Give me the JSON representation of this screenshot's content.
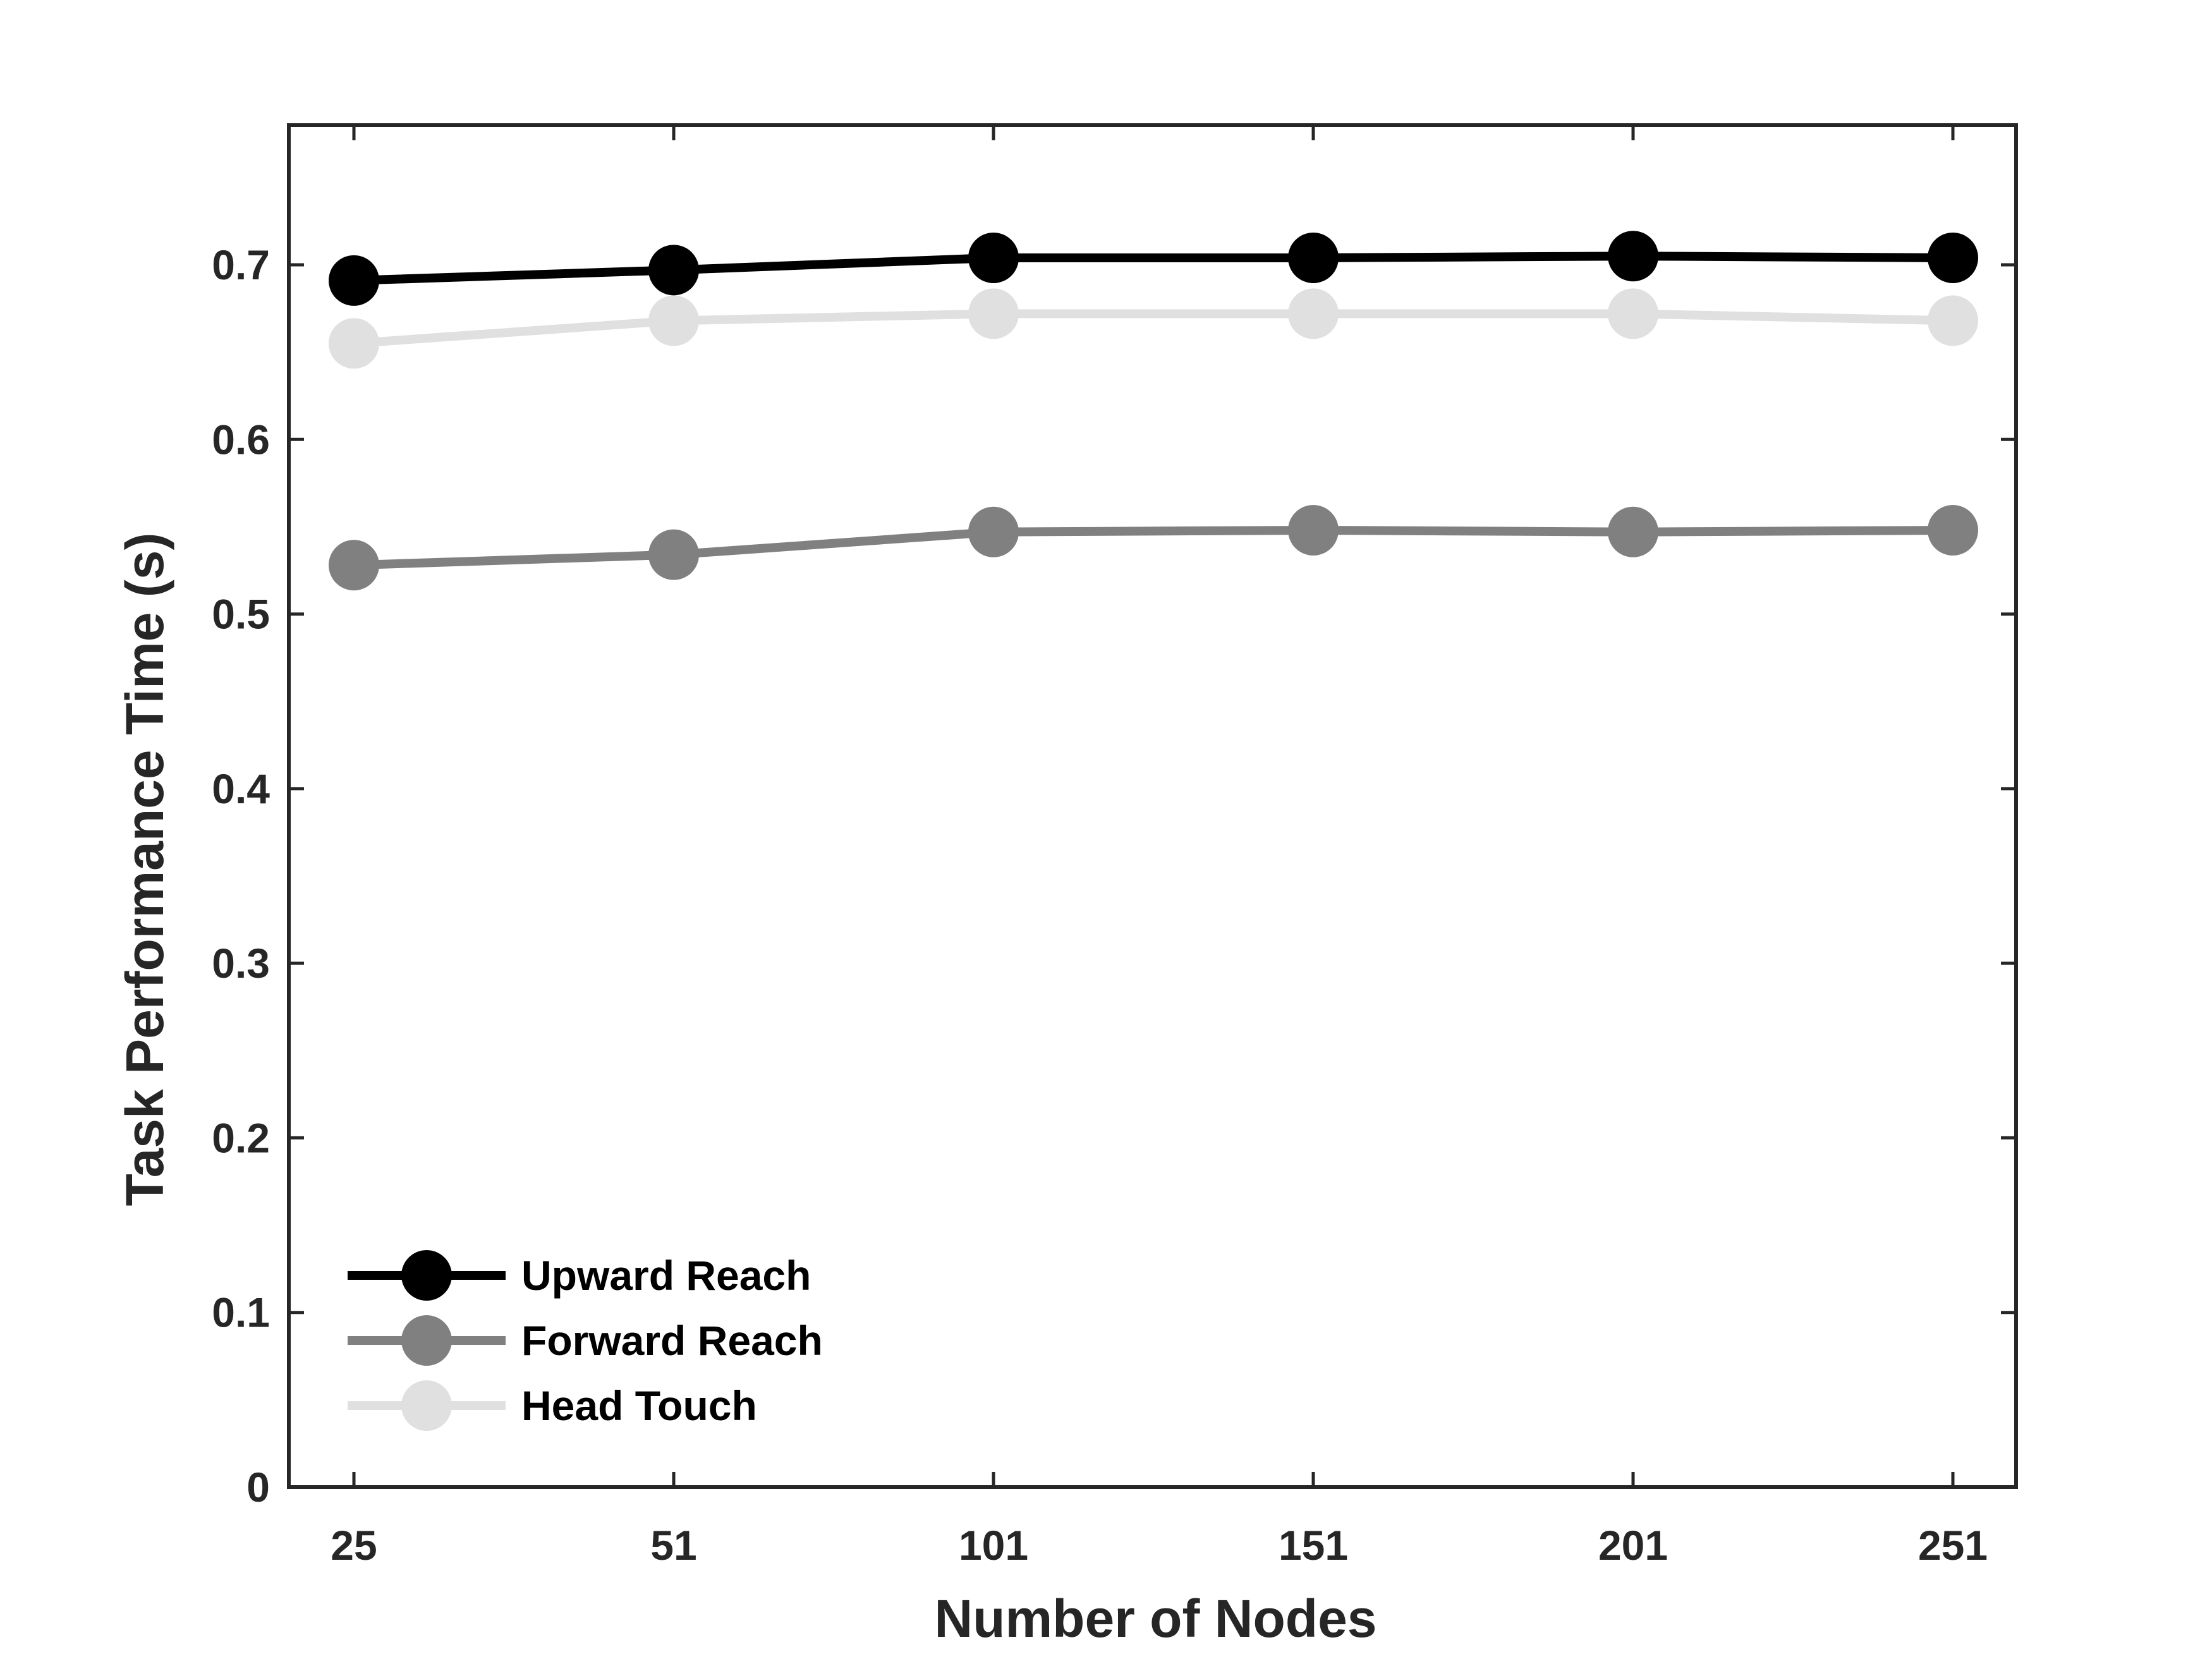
{
  "chart_data": {
    "type": "line",
    "xlabel": "Number of Nodes",
    "ylabel": "Task Performance Time (s)",
    "categories": [
      "25",
      "51",
      "101",
      "151",
      "201",
      "251"
    ],
    "yticks": [
      "0",
      "0.1",
      "0.2",
      "0.3",
      "0.4",
      "0.5",
      "0.6",
      "0.7"
    ],
    "ylim": [
      0,
      0.78
    ],
    "grid": false,
    "legend_position": "bottom-left",
    "series": [
      {
        "name": "Upward Reach",
        "color": "#000000",
        "values": [
          0.691,
          0.697,
          0.704,
          0.704,
          0.705,
          0.704
        ]
      },
      {
        "name": "Forward Reach",
        "color": "#808080",
        "values": [
          0.528,
          0.534,
          0.547,
          0.548,
          0.547,
          0.548
        ]
      },
      {
        "name": "Head Touch",
        "color": "#e0e0e0",
        "values": [
          0.655,
          0.668,
          0.672,
          0.672,
          0.672,
          0.668
        ]
      }
    ]
  }
}
